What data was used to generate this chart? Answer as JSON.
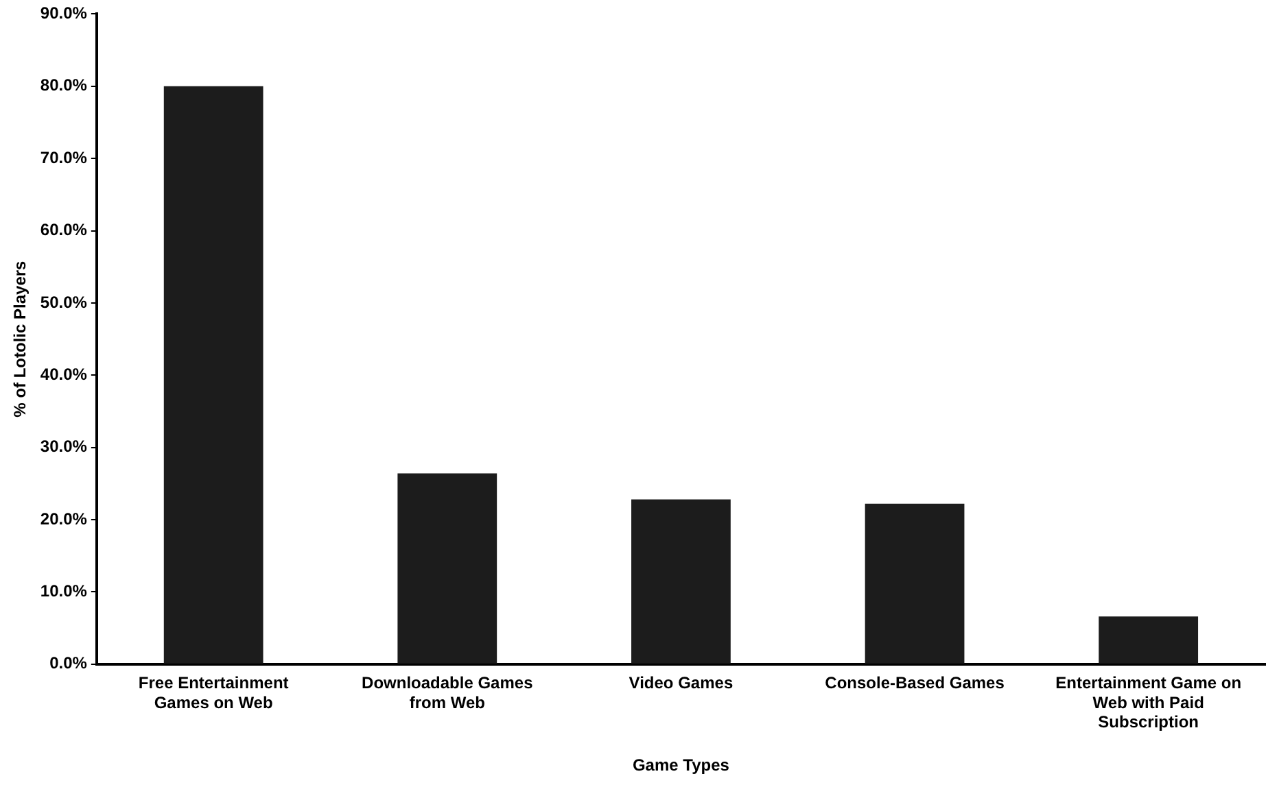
{
  "chart_data": {
    "type": "bar",
    "xlabel": "Game Types",
    "ylabel": "% of Lotolic Players",
    "categories": [
      "Free Entertainment Games on Web",
      "Downloadable Games from Web",
      "Video Games",
      "Console-Based Games",
      "Entertainment Game on Web with Paid Subscription"
    ],
    "values": [
      80.0,
      26.4,
      22.8,
      22.2,
      6.6
    ],
    "color": "#1c1c1c",
    "ylim": [
      0,
      90
    ],
    "yticks": [
      {
        "value": 0,
        "label": "0.0%"
      },
      {
        "value": 10,
        "label": "10.0%"
      },
      {
        "value": 20,
        "label": "20.0%"
      },
      {
        "value": 30,
        "label": "30.0%"
      },
      {
        "value": 40,
        "label": "40.0%"
      },
      {
        "value": 50,
        "label": "50.0%"
      },
      {
        "value": 60,
        "label": "60.0%"
      },
      {
        "value": 70,
        "label": "70.0%"
      },
      {
        "value": 80,
        "label": "80.0%"
      },
      {
        "value": 90,
        "label": "90.0%"
      }
    ],
    "grid": false,
    "legend": false
  }
}
